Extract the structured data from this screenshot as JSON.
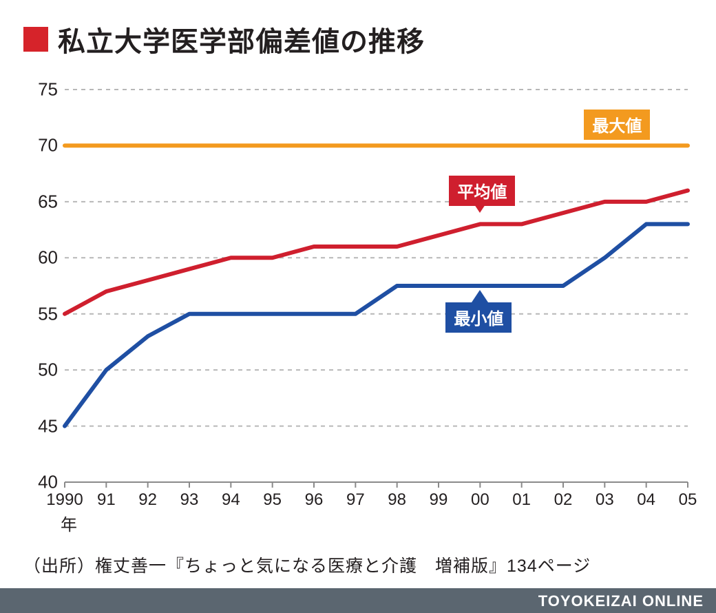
{
  "title": {
    "text": "私立大学医学部偏差値の推移",
    "square_color": "#d6232a",
    "fontsize": 40,
    "text_color": "#231f20"
  },
  "chart": {
    "type": "line",
    "background_color": "#ffffff",
    "ylim": [
      40,
      75
    ],
    "ytick_step": 5,
    "yticks": [
      40,
      45,
      50,
      55,
      60,
      65,
      70,
      75
    ],
    "x_categories": [
      "1990",
      "91",
      "92",
      "93",
      "94",
      "95",
      "96",
      "97",
      "98",
      "99",
      "00",
      "01",
      "02",
      "03",
      "04",
      "05"
    ],
    "x_unit_label": "年",
    "grid": {
      "color": "#b7b7b7",
      "dash": "6,6",
      "width": 2
    },
    "axis_line_color": "#8a8a8a",
    "tick_fontsize_y": 26,
    "tick_fontsize_x": 24,
    "tick_color": "#231f20",
    "series": {
      "max": {
        "label": "最大値",
        "color": "#f39a1f",
        "line_width": 6,
        "values": [
          70,
          70,
          70,
          70,
          70,
          70,
          70,
          70,
          70,
          70,
          70,
          70,
          70,
          70,
          70,
          70
        ],
        "legend_bg": "#f39a1f",
        "legend_text_color": "#ffffff",
        "legend_fontsize": 24
      },
      "avg": {
        "label": "平均値",
        "color": "#cf1f2e",
        "line_width": 6,
        "values": [
          55,
          57,
          58,
          59,
          60,
          60,
          61,
          61,
          61,
          62,
          63,
          63,
          64,
          65,
          65,
          66
        ],
        "legend_bg": "#cf1f2e",
        "legend_text_color": "#ffffff",
        "legend_fontsize": 24
      },
      "min": {
        "label": "最小値",
        "color": "#1f4fa3",
        "line_width": 6,
        "values": [
          45,
          50,
          53,
          55,
          55,
          55,
          55,
          55,
          57.5,
          57.5,
          57.5,
          57.5,
          57.5,
          60,
          63,
          63
        ],
        "legend_bg": "#1f4fa3",
        "legend_text_color": "#ffffff",
        "legend_fontsize": 24
      }
    }
  },
  "source": {
    "text": "（出所）権丈善一『ちょっと気になる医療と介護　増補版』134ページ",
    "fontsize": 25,
    "color": "#231f20"
  },
  "footer": {
    "bar_color": "#5b6670",
    "text": "TOYOKEIZAI ONLINE",
    "text_color": "#ffffff",
    "fontsize": 22
  }
}
